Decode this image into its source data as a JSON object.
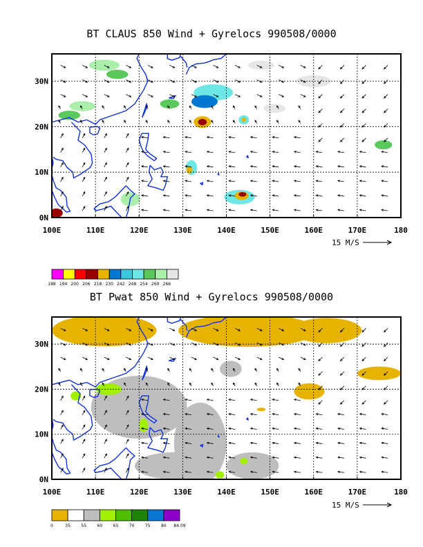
{
  "chart_data": [
    {
      "type": "heatmap",
      "title": "BT CLAUS 850 Wind + Gyrelocs 990508/0000",
      "x_ticks": [
        "100E",
        "110E",
        "120E",
        "130E",
        "140E",
        "150E",
        "160E",
        "170E",
        "180"
      ],
      "y_ticks": [
        "0N",
        "10N",
        "20N",
        "30N"
      ],
      "xlim": [
        100,
        180
      ],
      "ylim": [
        0,
        36
      ],
      "grid": true,
      "reference_vector_label": "15 M/S",
      "colorbar": {
        "labels": [
          "188",
          "194",
          "200",
          "206",
          "218",
          "230",
          "242",
          "248",
          "254",
          "260",
          "266"
        ],
        "colors": [
          "#ff00ff",
          "#ffff00",
          "#ff0000",
          "#990000",
          "#e6b400",
          "#0078d2",
          "#3cc8dc",
          "#6ee6e6",
          "#5ac85a",
          "#aaf0aa",
          "#e6e6e6"
        ]
      }
    },
    {
      "type": "heatmap",
      "title": "BT Pwat 850 Wind + Gyrelocs 990508/0000",
      "x_ticks": [
        "100E",
        "110E",
        "120E",
        "130E",
        "140E",
        "150E",
        "160E",
        "170E",
        "180"
      ],
      "y_ticks": [
        "0N",
        "10N",
        "20N",
        "30N"
      ],
      "xlim": [
        100,
        180
      ],
      "ylim": [
        0,
        36
      ],
      "grid": true,
      "reference_vector_label": "15 M/S",
      "colorbar": {
        "labels": [
          "0",
          "35",
          "55",
          "60",
          "65",
          "70",
          "75",
          "80",
          "84.09"
        ],
        "colors": [
          "#e6b400",
          "#ffffff",
          "#bebebe",
          "#a0f000",
          "#50be00",
          "#1e820a",
          "#0a78d2",
          "#8c00c8"
        ]
      }
    }
  ],
  "colors": {
    "coastline": "#1030e0",
    "claus_cloud": [
      "#e6e6e6",
      "#aaf0aa",
      "#5ac85a",
      "#6ee6e6",
      "#0078d2",
      "#e6b400",
      "#990000"
    ],
    "pwat_field": [
      "#e6b400",
      "#bebebe",
      "#a0f000"
    ]
  }
}
